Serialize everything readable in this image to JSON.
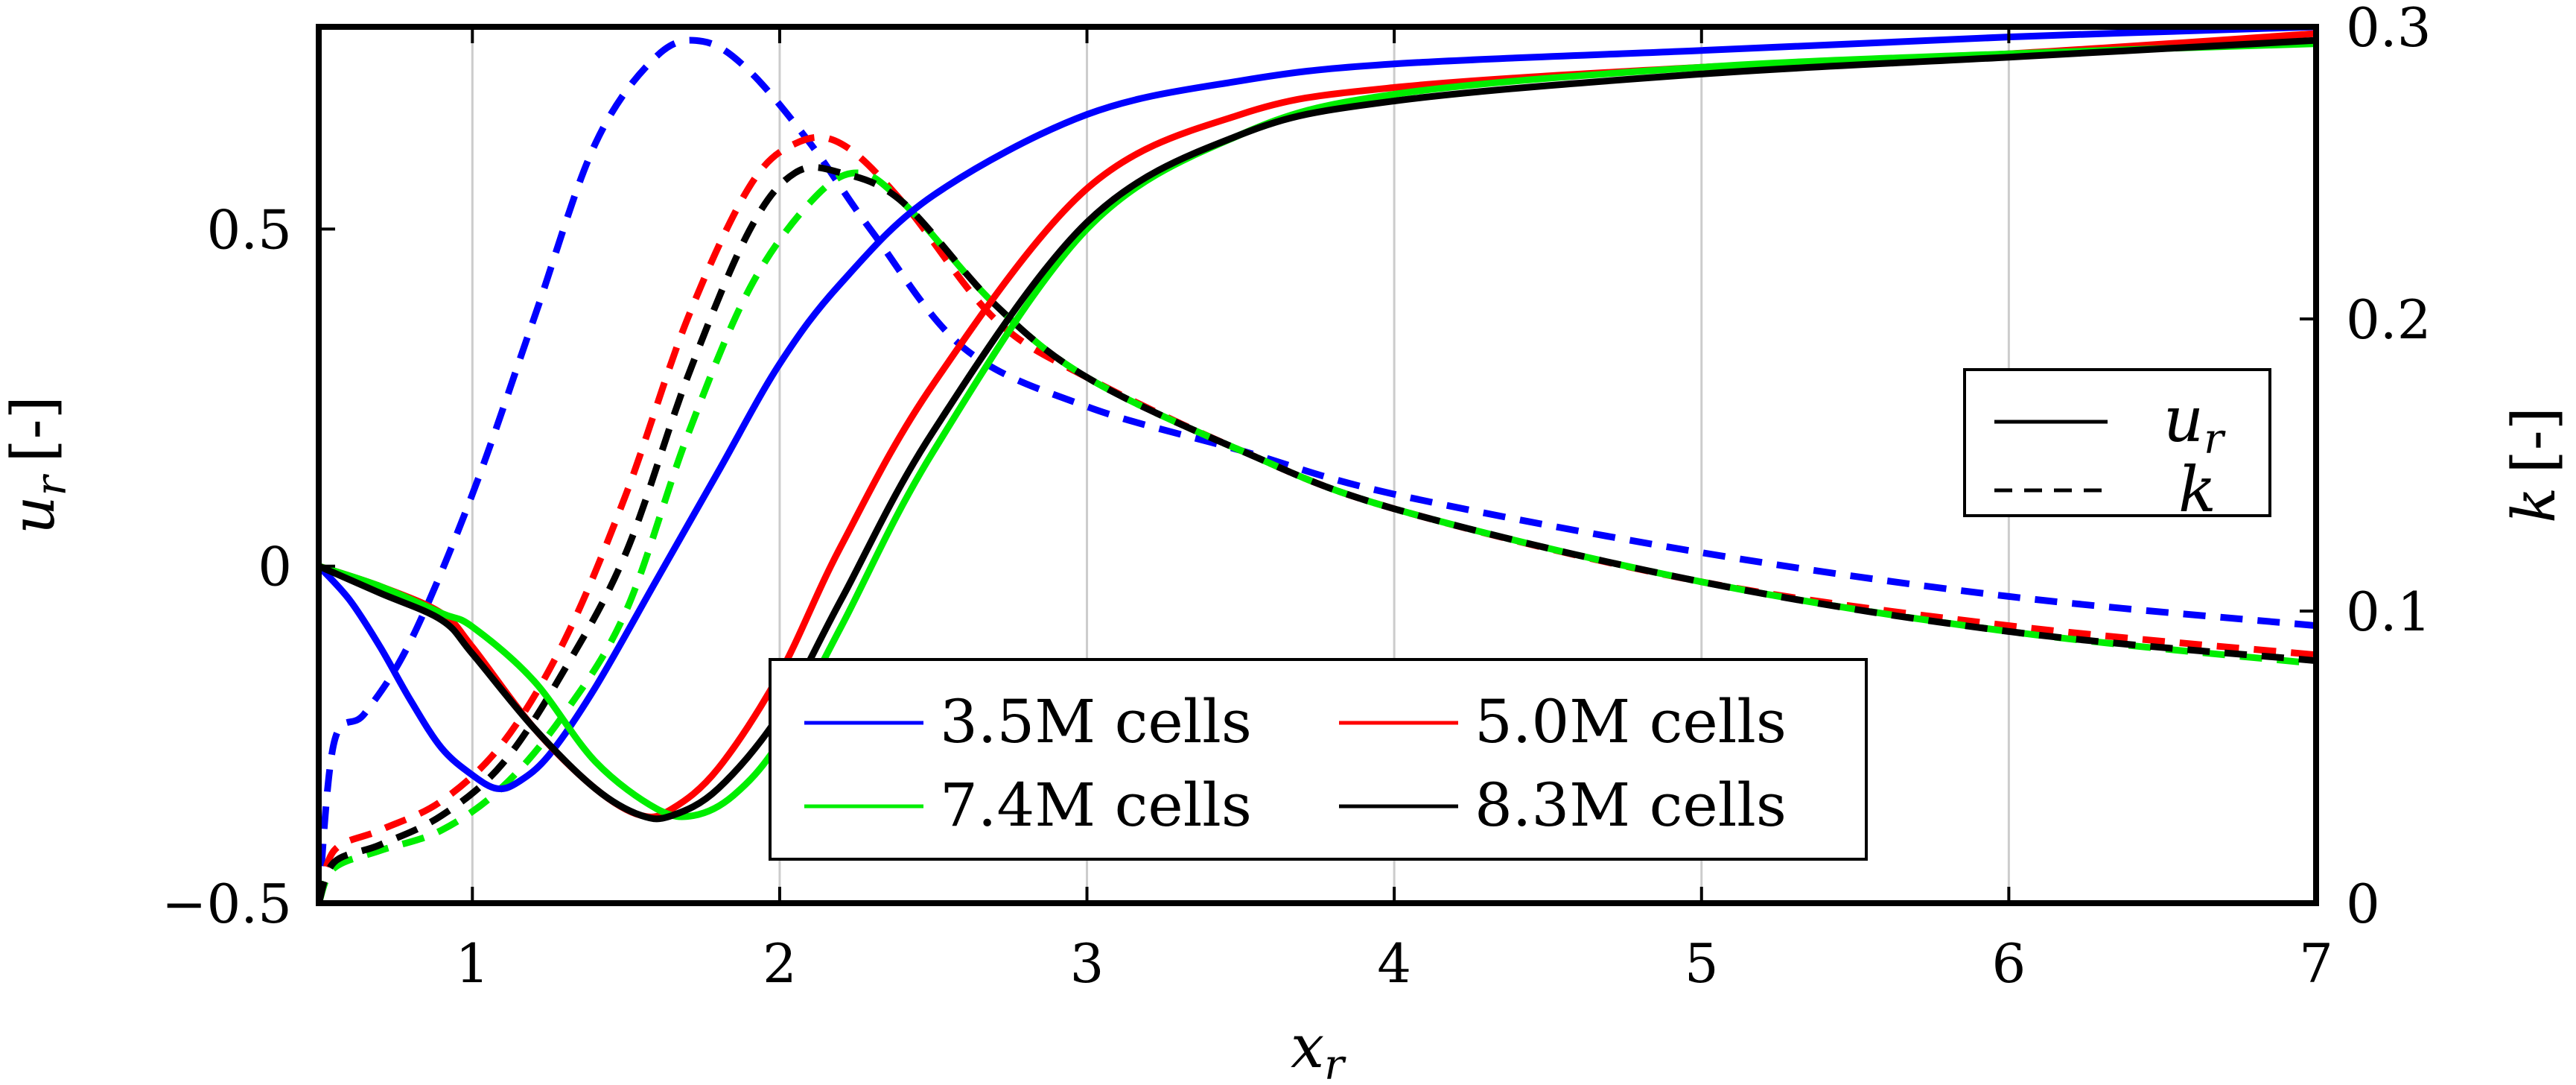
{
  "chart_data": {
    "type": "line",
    "xlabel": "x",
    "xlabel_sub": "r",
    "ylabel_left": "u",
    "ylabel_left_sub": "r",
    "ylabel_left_unit": "[-]",
    "ylabel_right": "k",
    "ylabel_right_unit": "[-]",
    "xlim": [
      0.5,
      7
    ],
    "ylim_left": [
      -0.5,
      0.8
    ],
    "ylim_right": [
      0,
      0.3
    ],
    "xticks": [
      "1",
      "2",
      "3",
      "4",
      "5",
      "6",
      "7"
    ],
    "xtick_values": [
      1,
      2,
      3,
      4,
      5,
      6,
      7
    ],
    "yticks_left": [
      "−0.5",
      "0",
      "0.5"
    ],
    "ytick_values_left": [
      -0.5,
      0,
      0.5
    ],
    "yticks_right": [
      "0",
      "0.1",
      "0.2",
      "0.3"
    ],
    "ytick_values_right": [
      0,
      0.1,
      0.2,
      0.3
    ],
    "grid": "vertical x-ticks",
    "legend_cells": {
      "placement": "bottom-center",
      "entries": [
        {
          "label": "3.5M cells",
          "color": "#0000ff"
        },
        {
          "label": "5.0M cells",
          "color": "#ff0000"
        },
        {
          "label": "7.4M cells",
          "color": "#00ee00"
        },
        {
          "label": "8.3M cells",
          "color": "#000000"
        }
      ]
    },
    "legend_vars": {
      "placement": "right",
      "entries": [
        {
          "label": "u",
          "sub": "r",
          "style": "solid"
        },
        {
          "label": "k",
          "sub": "",
          "style": "dashed"
        }
      ]
    },
    "series": [
      {
        "name": "3.5M cells",
        "quantity": "u_r",
        "axis": "left",
        "color": "#0000ff",
        "style": "solid",
        "x": [
          0.5,
          0.6,
          0.7,
          0.8,
          0.9,
          1.0,
          1.08,
          1.15,
          1.25,
          1.4,
          1.6,
          1.8,
          2.0,
          2.2,
          2.5,
          3.0,
          3.5,
          4.0,
          5.0,
          6.0,
          7.0
        ],
        "y": [
          0.0,
          -0.05,
          -0.12,
          -0.2,
          -0.27,
          -0.31,
          -0.33,
          -0.32,
          -0.28,
          -0.18,
          -0.02,
          0.14,
          0.3,
          0.42,
          0.55,
          0.67,
          0.72,
          0.745,
          0.765,
          0.785,
          0.8
        ]
      },
      {
        "name": "5.0M cells",
        "quantity": "u_r",
        "axis": "left",
        "color": "#ff0000",
        "style": "solid",
        "x": [
          0.5,
          0.7,
          0.9,
          1.0,
          1.2,
          1.4,
          1.55,
          1.65,
          1.8,
          2.0,
          2.2,
          2.5,
          3.0,
          3.5,
          4.0,
          5.0,
          6.0,
          7.0
        ],
        "y": [
          0.0,
          -0.03,
          -0.07,
          -0.12,
          -0.24,
          -0.33,
          -0.37,
          -0.36,
          -0.3,
          -0.16,
          0.03,
          0.27,
          0.56,
          0.67,
          0.71,
          0.74,
          0.76,
          0.79
        ]
      },
      {
        "name": "7.4M cells",
        "quantity": "u_r",
        "axis": "left",
        "color": "#00ee00",
        "style": "solid",
        "x": [
          0.5,
          0.7,
          0.9,
          1.0,
          1.2,
          1.4,
          1.6,
          1.72,
          1.85,
          2.0,
          2.2,
          2.5,
          3.0,
          3.5,
          4.0,
          5.0,
          6.0,
          7.0
        ],
        "y": [
          0.0,
          -0.03,
          -0.07,
          -0.09,
          -0.17,
          -0.29,
          -0.36,
          -0.37,
          -0.34,
          -0.26,
          -0.09,
          0.17,
          0.5,
          0.64,
          0.7,
          0.74,
          0.76,
          0.775
        ]
      },
      {
        "name": "8.3M cells",
        "quantity": "u_r",
        "axis": "left",
        "color": "#000000",
        "style": "solid",
        "x": [
          0.5,
          0.7,
          0.9,
          1.0,
          1.2,
          1.4,
          1.55,
          1.65,
          1.8,
          2.0,
          2.2,
          2.5,
          3.0,
          3.5,
          4.0,
          5.0,
          6.0,
          7.0
        ],
        "y": [
          0.0,
          -0.04,
          -0.08,
          -0.13,
          -0.24,
          -0.33,
          -0.37,
          -0.37,
          -0.33,
          -0.22,
          -0.05,
          0.2,
          0.51,
          0.64,
          0.69,
          0.73,
          0.755,
          0.78
        ]
      },
      {
        "name": "3.5M cells",
        "quantity": "k",
        "axis": "right",
        "color": "#0000ff",
        "style": "dashed",
        "x": [
          0.5,
          0.55,
          0.65,
          0.8,
          1.0,
          1.2,
          1.4,
          1.6,
          1.75,
          1.9,
          2.1,
          2.3,
          2.6,
          3.0,
          3.5,
          4.0,
          5.0,
          6.0,
          7.0
        ],
        "y": [
          0.0,
          0.055,
          0.065,
          0.09,
          0.14,
          0.2,
          0.26,
          0.29,
          0.295,
          0.285,
          0.26,
          0.23,
          0.19,
          0.17,
          0.155,
          0.14,
          0.12,
          0.105,
          0.095
        ]
      },
      {
        "name": "5.0M cells",
        "quantity": "k",
        "axis": "right",
        "color": "#ff0000",
        "style": "dashed",
        "x": [
          0.5,
          0.55,
          0.7,
          0.9,
          1.1,
          1.3,
          1.5,
          1.7,
          1.9,
          2.05,
          2.2,
          2.4,
          2.7,
          3.0,
          3.5,
          4.0,
          5.0,
          6.0,
          7.0
        ],
        "y": [
          0.0,
          0.018,
          0.025,
          0.035,
          0.055,
          0.09,
          0.14,
          0.2,
          0.245,
          0.26,
          0.26,
          0.24,
          0.2,
          0.18,
          0.155,
          0.135,
          0.11,
          0.095,
          0.085
        ]
      },
      {
        "name": "7.4M cells",
        "quantity": "k",
        "axis": "right",
        "color": "#00ee00",
        "style": "dashed",
        "x": [
          0.5,
          0.55,
          0.7,
          0.9,
          1.1,
          1.3,
          1.5,
          1.7,
          1.9,
          2.1,
          2.25,
          2.4,
          2.7,
          3.0,
          3.5,
          4.0,
          5.0,
          6.0,
          7.0
        ],
        "y": [
          0.0,
          0.012,
          0.018,
          0.025,
          0.04,
          0.065,
          0.1,
          0.16,
          0.21,
          0.24,
          0.25,
          0.24,
          0.205,
          0.18,
          0.155,
          0.135,
          0.11,
          0.093,
          0.082
        ]
      },
      {
        "name": "8.3M cells",
        "quantity": "k",
        "axis": "right",
        "color": "#000000",
        "style": "dashed",
        "x": [
          0.5,
          0.55,
          0.7,
          0.9,
          1.1,
          1.3,
          1.5,
          1.7,
          1.9,
          2.05,
          2.2,
          2.4,
          2.7,
          3.0,
          3.5,
          4.0,
          5.0,
          6.0,
          7.0
        ],
        "y": [
          0.0,
          0.014,
          0.02,
          0.03,
          0.048,
          0.08,
          0.12,
          0.18,
          0.23,
          0.25,
          0.25,
          0.24,
          0.205,
          0.18,
          0.155,
          0.135,
          0.11,
          0.093,
          0.083
        ]
      }
    ]
  }
}
